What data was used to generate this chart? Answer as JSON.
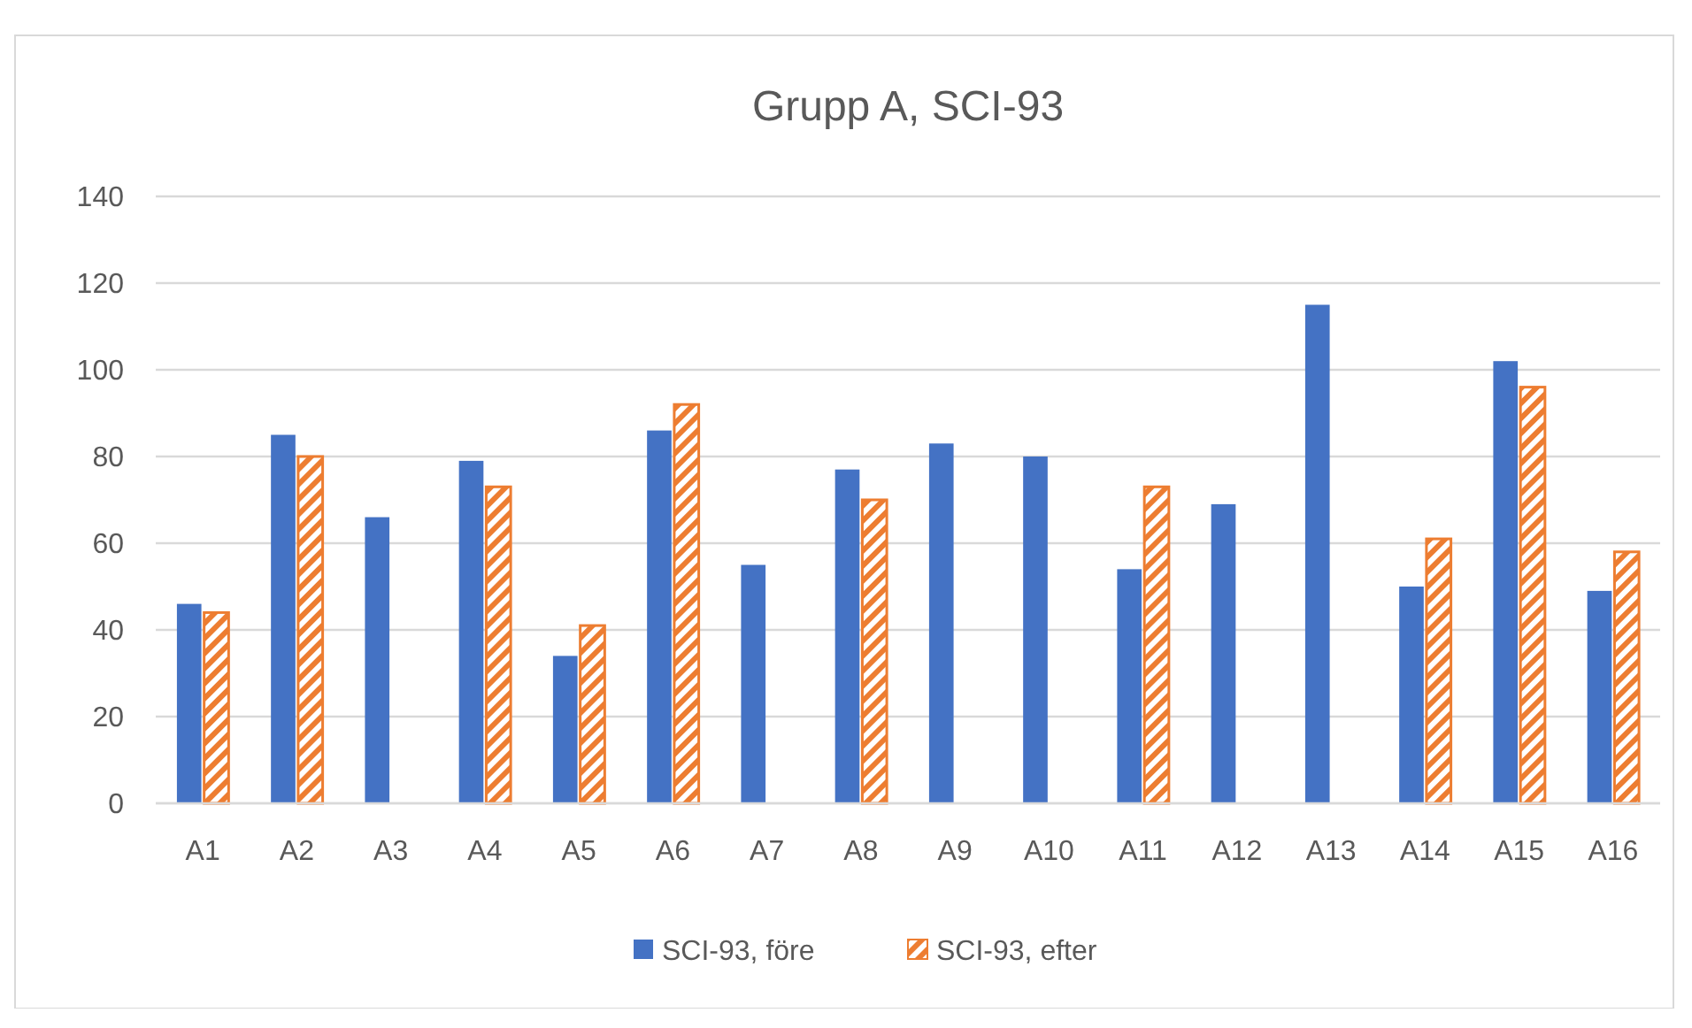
{
  "chart_data": {
    "type": "bar",
    "title": "Grupp A, SCI-93",
    "categories": [
      "A1",
      "A2",
      "A3",
      "A4",
      "A5",
      "A6",
      "A7",
      "A8",
      "A9",
      "A10",
      "A11",
      "A12",
      "A13",
      "A14",
      "A15",
      "A16"
    ],
    "series": [
      {
        "name": "SCI-93, före",
        "color": "#4472c4",
        "values": [
          46,
          85,
          66,
          79,
          34,
          86,
          55,
          77,
          83,
          80,
          54,
          69,
          115,
          50,
          102,
          49
        ]
      },
      {
        "name": "SCI-93, efter",
        "color": "#ed7d31",
        "values": [
          44,
          80,
          null,
          73,
          41,
          92,
          null,
          70,
          null,
          null,
          73,
          null,
          null,
          61,
          96,
          58
        ]
      }
    ],
    "ylim": [
      0,
      140
    ],
    "yticks": [
      0,
      20,
      40,
      60,
      80,
      100,
      120,
      140
    ],
    "grid": "y",
    "legend": "bottom"
  }
}
